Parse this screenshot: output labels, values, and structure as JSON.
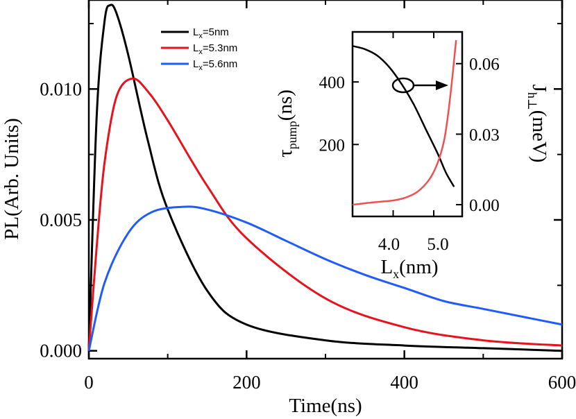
{
  "chart_data": [
    {
      "type": "line",
      "xlabel": "Time(ns)",
      "ylabel": "PL(Arb. Units)",
      "xlim": [
        0,
        600
      ],
      "ylim": [
        -0.0003,
        0.0134
      ],
      "x_ticks": [
        "0",
        "200",
        "400",
        "600"
      ],
      "y_ticks": [
        "0.000",
        "0.005",
        "0.010"
      ],
      "legend_position": "top-center",
      "series": [
        {
          "name": "Lₓ=5nm",
          "legend": {
            "base": "L",
            "sub": "x",
            "rest": "=5nm"
          },
          "color": "#000000",
          "x": [
            0,
            10,
            20,
            27,
            35,
            50,
            75,
            100,
            150,
            200,
            300,
            400,
            500,
            600
          ],
          "y": [
            0.0,
            0.009,
            0.0126,
            0.0132,
            0.0129,
            0.0113,
            0.008,
            0.0054,
            0.0023,
            0.001,
            0.0004,
            0.0002,
            0.0001,
            0.0
          ]
        },
        {
          "name": "Lₓ=5.3nm",
          "legend": {
            "base": "L",
            "sub": "x",
            "rest": "=5.3nm"
          },
          "color": "#e8121c",
          "x": [
            0,
            10,
            20,
            35,
            55,
            75,
            100,
            150,
            200,
            300,
            400,
            500,
            600
          ],
          "y": [
            0.0,
            0.004,
            0.0072,
            0.0097,
            0.0104,
            0.0099,
            0.0088,
            0.0063,
            0.0043,
            0.002,
            0.0009,
            0.0004,
            0.0002
          ]
        },
        {
          "name": "Lₓ=5.6nm",
          "legend": {
            "base": "L",
            "sub": "x",
            "rest": "=5.6nm"
          },
          "color": "#1f5bff",
          "x": [
            0,
            20,
            50,
            80,
            120,
            150,
            200,
            250,
            300,
            350,
            400,
            450,
            500,
            550,
            600
          ],
          "y": [
            0.0,
            0.0026,
            0.0045,
            0.0053,
            0.0055,
            0.0054,
            0.0049,
            0.0042,
            0.0035,
            0.0029,
            0.0024,
            0.0019,
            0.0016,
            0.0013,
            0.001
          ]
        }
      ]
    },
    {
      "type": "line",
      "inset": true,
      "xlabel": {
        "base": "L",
        "sub": "x",
        "rest": "(nm)"
      },
      "ylabel_left": {
        "base": "τ",
        "sub": "pump",
        "rest": "(ns)"
      },
      "ylabel_right": {
        "base": "J",
        "sub": "h⊥",
        "rest": "(meV)"
      },
      "xlim": [
        3.0,
        5.7
      ],
      "ylim_left": [
        -30,
        560
      ],
      "ylim_right": [
        -0.005,
        0.0735
      ],
      "x_ticks": [
        "4.0",
        "5.0"
      ],
      "y_ticks_left": [
        "200",
        "400"
      ],
      "y_ticks_right": [
        "0.00",
        "0.03",
        "0.06"
      ],
      "annotation": "circle with arrow pointing to the right axis",
      "series": [
        {
          "axis": "left",
          "color": "#000000",
          "x": [
            3.0,
            3.3,
            3.6,
            3.9,
            4.2,
            4.5,
            4.8,
            5.1,
            5.3,
            5.5
          ],
          "y": [
            515,
            505,
            485,
            448,
            395,
            330,
            250,
            170,
            110,
            65
          ]
        },
        {
          "axis": "right",
          "color": "#f05050",
          "x": [
            3.0,
            3.5,
            4.0,
            4.3,
            4.6,
            4.9,
            5.1,
            5.25,
            5.35,
            5.45,
            5.55
          ],
          "y": [
            0.0,
            0.001,
            0.0018,
            0.003,
            0.0055,
            0.011,
            0.018,
            0.027,
            0.038,
            0.053,
            0.07
          ]
        }
      ]
    }
  ]
}
